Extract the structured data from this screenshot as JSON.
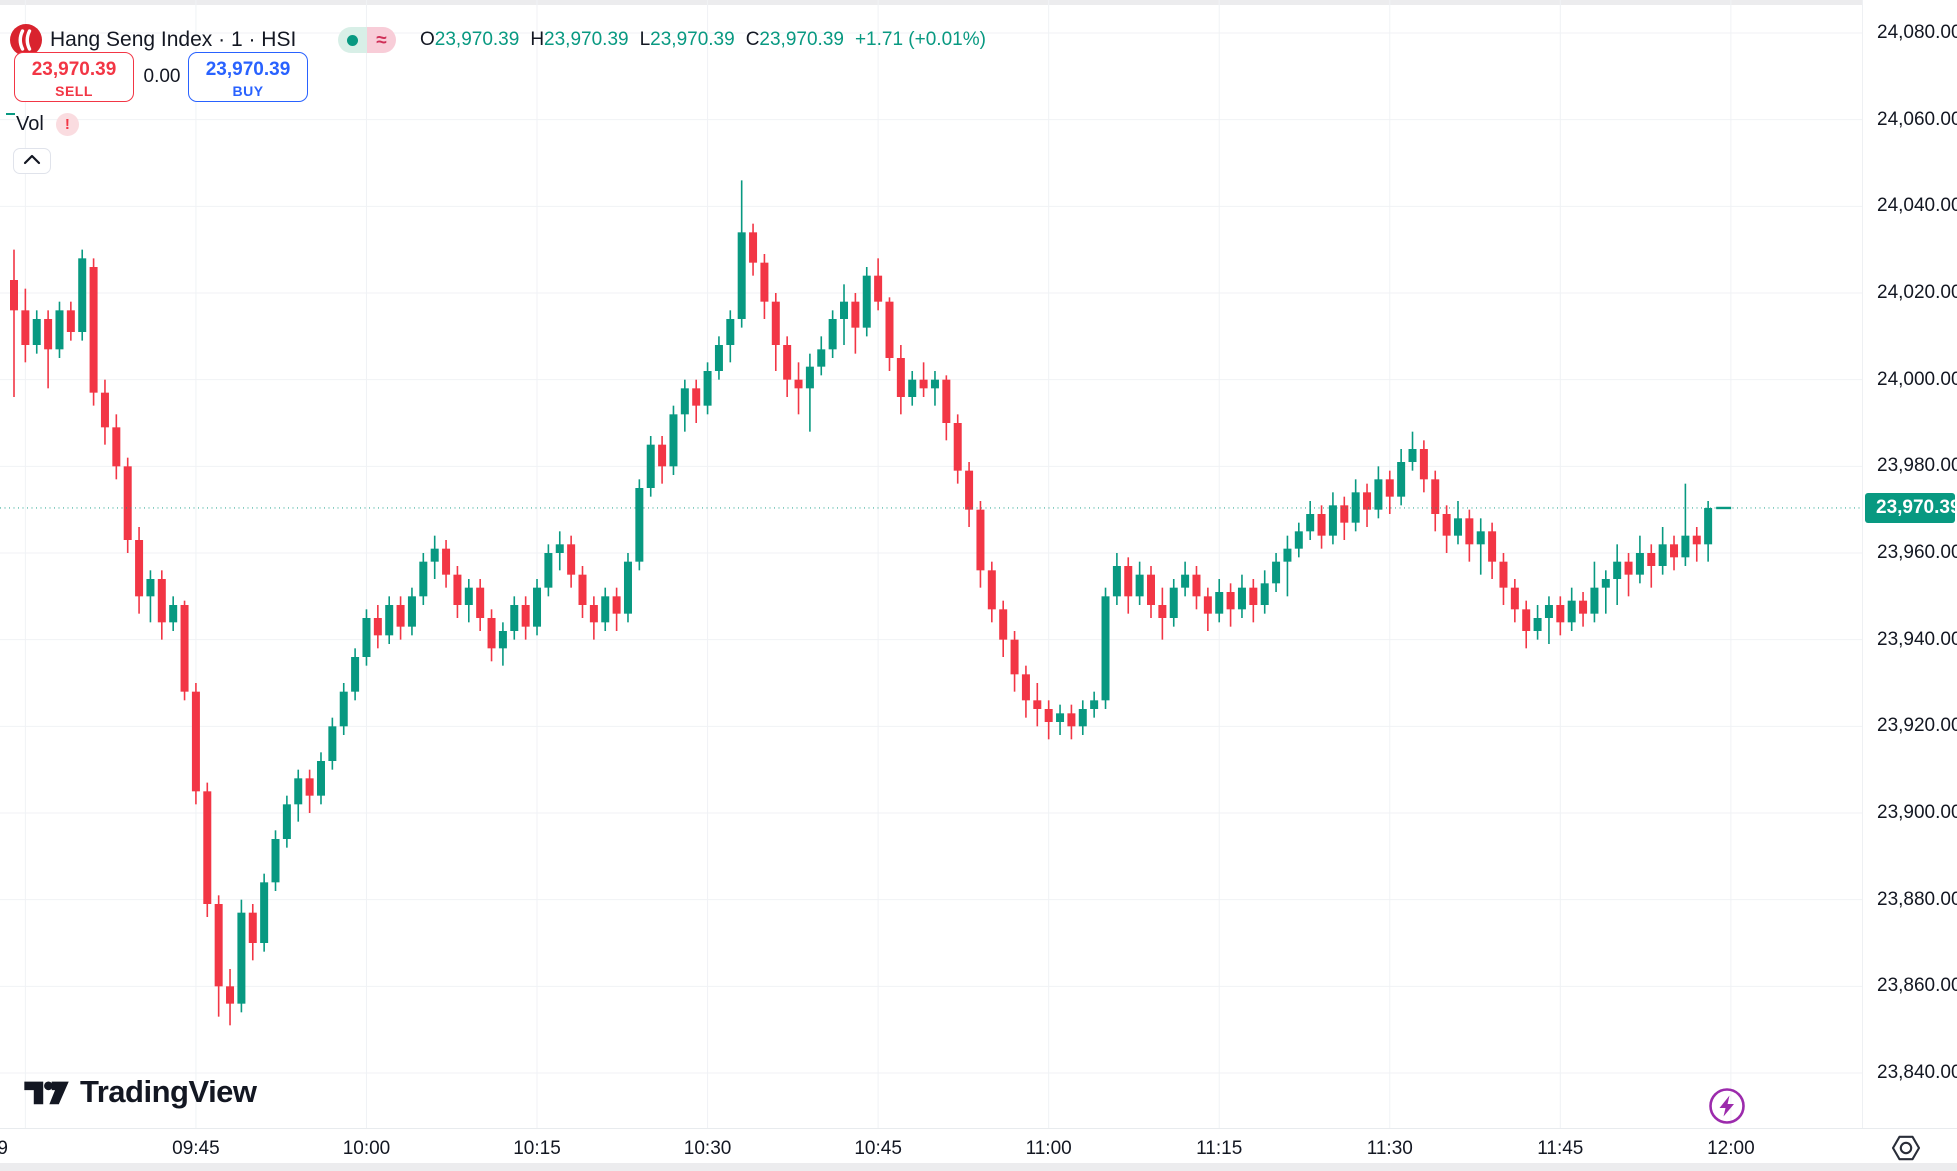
{
  "header": {
    "title": "Hang Seng Index · 1 · HSI",
    "delayed_badge": "≈",
    "ohlc": {
      "o": "O",
      "o_v": "23,970.39",
      "h": "H",
      "h_v": "23,970.39",
      "l": "L",
      "l_v": "23,970.39",
      "c": "C",
      "c_v": "23,970.39",
      "chg": "+1.71 (+0.01%)"
    }
  },
  "trade_panel": {
    "sell_price": "23,970.39",
    "sell_label": "SELL",
    "spread": "0.00",
    "buy_price": "23,970.39",
    "buy_label": "BUY"
  },
  "indicator": {
    "label": "Vol",
    "warning": "!"
  },
  "watermark": {
    "brand": "TradingView"
  },
  "axis": {
    "current_price_label": "23,970.39"
  },
  "colors": {
    "up": "#089981",
    "down": "#F23645",
    "grid": "#f0f2f5",
    "axis_text": "#131722",
    "buy": "#2962FF",
    "sell": "#F23645",
    "lightning": "#9C2BAC",
    "logo_red": "#D9232E"
  },
  "chart_data": {
    "type": "candlestick",
    "title": "Hang Seng Index",
    "symbol": "HSI",
    "interval": "1 minute",
    "start_time": "09:29",
    "current_price": 23970.39,
    "ylim": [
      23827,
      24088
    ],
    "grid": true,
    "y_ticks": [
      {
        "label": "24,080.00",
        "value": 24080
      },
      {
        "label": "24,060.00",
        "value": 24060
      },
      {
        "label": "24,040.00",
        "value": 24040
      },
      {
        "label": "24,020.00",
        "value": 24020
      },
      {
        "label": "24,000.00",
        "value": 24000
      },
      {
        "label": "23,980.00",
        "value": 23980
      },
      {
        "label": "23,960.00",
        "value": 23960
      },
      {
        "label": "23,940.00",
        "value": 23940
      },
      {
        "label": "23,920.00",
        "value": 23920
      },
      {
        "label": "23,900.00",
        "value": 23900
      },
      {
        "label": "23,880.00",
        "value": 23880
      },
      {
        "label": "23,860.00",
        "value": 23860
      },
      {
        "label": "23,840.00",
        "value": 23840
      }
    ],
    "x_ticks": [
      {
        "label": "9",
        "idx": -1
      },
      {
        "label": "",
        "idx": 1
      },
      {
        "label": "09:45",
        "idx": 16
      },
      {
        "label": "10:00",
        "idx": 31
      },
      {
        "label": "10:15",
        "idx": 46
      },
      {
        "label": "10:30",
        "idx": 61
      },
      {
        "label": "10:45",
        "idx": 76
      },
      {
        "label": "11:00",
        "idx": 91
      },
      {
        "label": "11:15",
        "idx": 106
      },
      {
        "label": "11:30",
        "idx": 121
      },
      {
        "label": "11:45",
        "idx": 136
      },
      {
        "label": "12:00",
        "idx": 151
      }
    ],
    "candles": [
      [
        24023,
        24030,
        23996,
        24016
      ],
      [
        24016,
        24021,
        24004,
        24008
      ],
      [
        24008,
        24016,
        24006,
        24014
      ],
      [
        24014,
        24016,
        23998,
        24007
      ],
      [
        24007,
        24018,
        24005,
        24016
      ],
      [
        24016,
        24018,
        24009,
        24011
      ],
      [
        24011,
        24030,
        24009,
        24028
      ],
      [
        24026,
        24028,
        23994,
        23997
      ],
      [
        23997,
        24000,
        23985,
        23989
      ],
      [
        23989,
        23992,
        23977,
        23980
      ],
      [
        23980,
        23982,
        23960,
        23963
      ],
      [
        23963,
        23966,
        23946,
        23950
      ],
      [
        23950,
        23956,
        23944,
        23954
      ],
      [
        23954,
        23956,
        23940,
        23944
      ],
      [
        23944,
        23950,
        23942,
        23948
      ],
      [
        23948,
        23949,
        23926,
        23928
      ],
      [
        23928,
        23930,
        23902,
        23905
      ],
      [
        23905,
        23907,
        23876,
        23879
      ],
      [
        23879,
        23881,
        23853,
        23860
      ],
      [
        23860,
        23864,
        23851,
        23856
      ],
      [
        23856,
        23880,
        23854,
        23877
      ],
      [
        23877,
        23879,
        23866,
        23870
      ],
      [
        23870,
        23886,
        23868,
        23884
      ],
      [
        23884,
        23896,
        23882,
        23894
      ],
      [
        23894,
        23904,
        23892,
        23902
      ],
      [
        23902,
        23910,
        23898,
        23908
      ],
      [
        23908,
        23910,
        23900,
        23904
      ],
      [
        23904,
        23914,
        23902,
        23912
      ],
      [
        23912,
        23922,
        23910,
        23920
      ],
      [
        23920,
        23930,
        23918,
        23928
      ],
      [
        23928,
        23938,
        23926,
        23936
      ],
      [
        23936,
        23947,
        23934,
        23945
      ],
      [
        23945,
        23948,
        23938,
        23941
      ],
      [
        23941,
        23950,
        23939,
        23948
      ],
      [
        23948,
        23950,
        23940,
        23943
      ],
      [
        23943,
        23952,
        23941,
        23950
      ],
      [
        23950,
        23960,
        23948,
        23958
      ],
      [
        23958,
        23964,
        23954,
        23961
      ],
      [
        23961,
        23963,
        23952,
        23955
      ],
      [
        23955,
        23957,
        23945,
        23948
      ],
      [
        23948,
        23954,
        23944,
        23952
      ],
      [
        23952,
        23954,
        23942,
        23945
      ],
      [
        23945,
        23947,
        23935,
        23938
      ],
      [
        23938,
        23944,
        23934,
        23942
      ],
      [
        23942,
        23950,
        23940,
        23948
      ],
      [
        23948,
        23950,
        23940,
        23943
      ],
      [
        23943,
        23954,
        23941,
        23952
      ],
      [
        23952,
        23962,
        23950,
        23960
      ],
      [
        23960,
        23965,
        23956,
        23962
      ],
      [
        23962,
        23964,
        23952,
        23955
      ],
      [
        23955,
        23957,
        23945,
        23948
      ],
      [
        23948,
        23950,
        23940,
        23944
      ],
      [
        23944,
        23952,
        23942,
        23950
      ],
      [
        23950,
        23952,
        23942,
        23946
      ],
      [
        23946,
        23960,
        23944,
        23958
      ],
      [
        23958,
        23977,
        23956,
        23975
      ],
      [
        23975,
        23987,
        23973,
        23985
      ],
      [
        23985,
        23987,
        23976,
        23980
      ],
      [
        23980,
        23994,
        23978,
        23992
      ],
      [
        23992,
        24000,
        23988,
        23998
      ],
      [
        23998,
        24000,
        23990,
        23994
      ],
      [
        23994,
        24004,
        23992,
        24002
      ],
      [
        24002,
        24010,
        24000,
        24008
      ],
      [
        24008,
        24016,
        24004,
        24014
      ],
      [
        24014,
        24046,
        24012,
        24034
      ],
      [
        24034,
        24036,
        24024,
        24027
      ],
      [
        24027,
        24029,
        24014,
        24018
      ],
      [
        24018,
        24020,
        24002,
        24008
      ],
      [
        24008,
        24010,
        23996,
        24000
      ],
      [
        24000,
        24004,
        23992,
        23998
      ],
      [
        23998,
        24006,
        23988,
        24003
      ],
      [
        24003,
        24010,
        24001,
        24007
      ],
      [
        24007,
        24016,
        24005,
        24014
      ],
      [
        24014,
        24022,
        24008,
        24018
      ],
      [
        24018,
        24020,
        24006,
        24012
      ],
      [
        24012,
        24026,
        24010,
        24024
      ],
      [
        24024,
        24028,
        24016,
        24018
      ],
      [
        24018,
        24019,
        24002,
        24005
      ],
      [
        24005,
        24008,
        23992,
        23996
      ],
      [
        23996,
        24002,
        23994,
        24000
      ],
      [
        24000,
        24004,
        23996,
        23998
      ],
      [
        23998,
        24002,
        23994,
        24000
      ],
      [
        24000,
        24001,
        23986,
        23990
      ],
      [
        23990,
        23992,
        23976,
        23979
      ],
      [
        23979,
        23981,
        23966,
        23970
      ],
      [
        23970,
        23972,
        23952,
        23956
      ],
      [
        23956,
        23958,
        23944,
        23947
      ],
      [
        23947,
        23949,
        23936,
        23940
      ],
      [
        23940,
        23942,
        23928,
        23932
      ],
      [
        23932,
        23934,
        23922,
        23926
      ],
      [
        23926,
        23930,
        23920,
        23924
      ],
      [
        23924,
        23926,
        23917,
        23921
      ],
      [
        23921,
        23925,
        23918,
        23923
      ],
      [
        23923,
        23925,
        23917,
        23920
      ],
      [
        23920,
        23926,
        23918,
        23924
      ],
      [
        23924,
        23928,
        23922,
        23926
      ],
      [
        23926,
        23952,
        23924,
        23950
      ],
      [
        23950,
        23960,
        23948,
        23957
      ],
      [
        23957,
        23959,
        23946,
        23950
      ],
      [
        23950,
        23958,
        23948,
        23955
      ],
      [
        23955,
        23957,
        23945,
        23948
      ],
      [
        23948,
        23952,
        23940,
        23945
      ],
      [
        23945,
        23954,
        23943,
        23952
      ],
      [
        23952,
        23958,
        23950,
        23955
      ],
      [
        23955,
        23957,
        23947,
        23950
      ],
      [
        23950,
        23952,
        23942,
        23946
      ],
      [
        23946,
        23954,
        23944,
        23951
      ],
      [
        23951,
        23953,
        23943,
        23947
      ],
      [
        23947,
        23955,
        23945,
        23952
      ],
      [
        23952,
        23954,
        23944,
        23948
      ],
      [
        23948,
        23956,
        23946,
        23953
      ],
      [
        23953,
        23960,
        23951,
        23958
      ],
      [
        23958,
        23964,
        23950,
        23961
      ],
      [
        23961,
        23967,
        23959,
        23965
      ],
      [
        23965,
        23972,
        23963,
        23969
      ],
      [
        23969,
        23971,
        23961,
        23964
      ],
      [
        23964,
        23974,
        23962,
        23971
      ],
      [
        23971,
        23973,
        23963,
        23967
      ],
      [
        23967,
        23977,
        23965,
        23974
      ],
      [
        23974,
        23976,
        23966,
        23970
      ],
      [
        23970,
        23980,
        23968,
        23977
      ],
      [
        23977,
        23979,
        23969,
        23973
      ],
      [
        23973,
        23984,
        23971,
        23981
      ],
      [
        23981,
        23988,
        23979,
        23984
      ],
      [
        23984,
        23986,
        23974,
        23977
      ],
      [
        23977,
        23979,
        23965,
        23969
      ],
      [
        23969,
        23971,
        23960,
        23964
      ],
      [
        23964,
        23972,
        23962,
        23968
      ],
      [
        23968,
        23970,
        23958,
        23962
      ],
      [
        23962,
        23968,
        23955,
        23965
      ],
      [
        23965,
        23967,
        23954,
        23958
      ],
      [
        23958,
        23960,
        23948,
        23952
      ],
      [
        23952,
        23954,
        23944,
        23947
      ],
      [
        23947,
        23949,
        23938,
        23942
      ],
      [
        23942,
        23948,
        23940,
        23945
      ],
      [
        23945,
        23950,
        23939,
        23948
      ],
      [
        23948,
        23950,
        23941,
        23944
      ],
      [
        23944,
        23952,
        23942,
        23949
      ],
      [
        23949,
        23951,
        23943,
        23946
      ],
      [
        23946,
        23958,
        23944,
        23952
      ],
      [
        23952,
        23956,
        23946,
        23954
      ],
      [
        23954,
        23962,
        23948,
        23958
      ],
      [
        23958,
        23960,
        23950,
        23955
      ],
      [
        23955,
        23964,
        23953,
        23960
      ],
      [
        23960,
        23962,
        23952,
        23957
      ],
      [
        23957,
        23966,
        23955,
        23962
      ],
      [
        23962,
        23964,
        23956,
        23959
      ],
      [
        23959,
        23976,
        23957,
        23964
      ],
      [
        23964,
        23966,
        23958,
        23962
      ],
      [
        23962,
        23972,
        23958,
        23970.39
      ]
    ]
  }
}
